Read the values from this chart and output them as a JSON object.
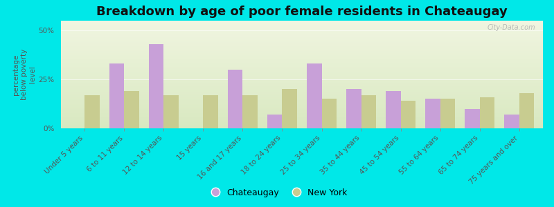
{
  "title": "Breakdown by age of poor female residents in Chateaugay",
  "ylabel": "percentage\nbelow poverty\nlevel",
  "categories": [
    "Under 5 years",
    "6 to 11 years",
    "12 to 14 years",
    "15 years",
    "16 and 17 years",
    "18 to 24 years",
    "25 to 34 years",
    "35 to 44 years",
    "45 to 54 years",
    "55 to 64 years",
    "65 to 74 years",
    "75 years and over"
  ],
  "chateaugay": [
    0,
    33,
    43,
    0,
    30,
    7,
    33,
    20,
    19,
    15,
    10,
    7
  ],
  "new_york": [
    17,
    19,
    17,
    17,
    17,
    20,
    15,
    17,
    14,
    15,
    16,
    18
  ],
  "chateaugay_color": "#c8a0d8",
  "new_york_color": "#c8cc90",
  "background_color": "#00e8e8",
  "plot_bg_top": "#f0f5e0",
  "plot_bg_bottom": "#d8e8c0",
  "ylim": [
    0,
    55
  ],
  "yticks": [
    0,
    25,
    50
  ],
  "ytick_labels": [
    "0%",
    "25%",
    "50%"
  ],
  "bar_width": 0.38,
  "watermark": "City-Data.com",
  "title_fontsize": 13,
  "label_fontsize": 7.5,
  "axis_label_fontsize": 7.5
}
